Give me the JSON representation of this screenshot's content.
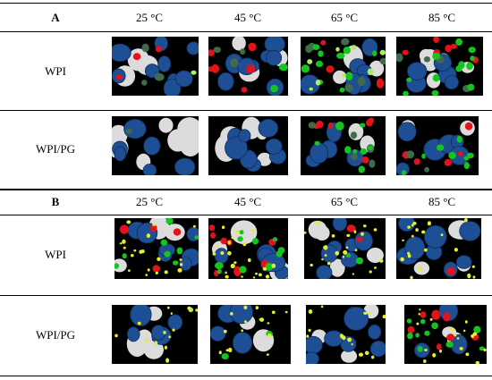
{
  "section_a": {
    "label": "A",
    "columns": [
      "25 °C",
      "45 °C",
      "65 °C",
      "85 °C"
    ],
    "rows": [
      "WPI",
      "WPI/PG"
    ]
  },
  "section_b": {
    "label": "B",
    "columns": [
      "25 °C",
      "45 °C",
      "65 °C",
      "85 °C"
    ],
    "rows": [
      "WPI",
      "WPI/PG"
    ]
  },
  "colors": {
    "background": "#000000",
    "large_droplet": "#1e4f95",
    "red_droplet": "#e3131a",
    "green_droplet": "#15c41d",
    "dark_green_droplet": "#3f6b4c",
    "light_green_droplet": "#a8f060",
    "yellow_droplet": "#e5ef2a",
    "white_droplet": "#dcdcdc",
    "rule_line": "#000000"
  }
}
